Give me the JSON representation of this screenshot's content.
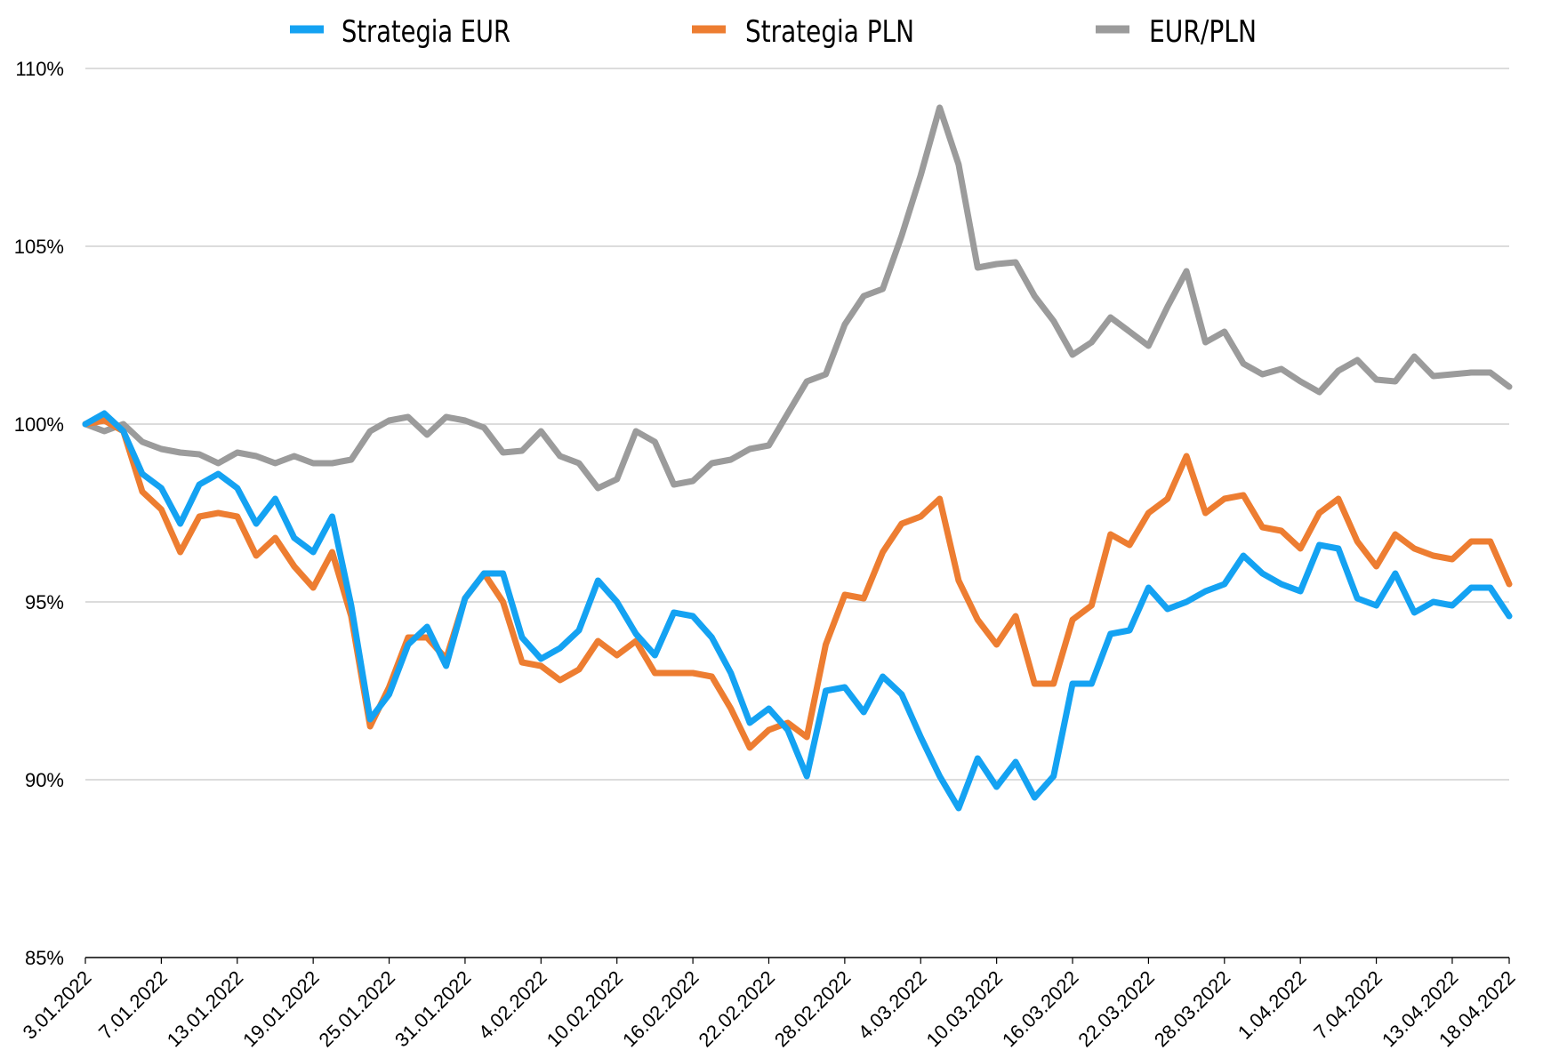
{
  "chart_data": {
    "type": "line",
    "title": "",
    "xlabel": "",
    "ylabel": "",
    "ylim": [
      85,
      110
    ],
    "y_ticks": [
      "85%",
      "90%",
      "95%",
      "100%",
      "105%",
      "110%"
    ],
    "y_tick_values": [
      85,
      90,
      95,
      100,
      105,
      110
    ],
    "grid": true,
    "legend_position": "top",
    "x_tick_labels": [
      "3.01.2022",
      "7.01.2022",
      "13.01.2022",
      "19.01.2022",
      "25.01.2022",
      "31.01.2022",
      "4.02.2022",
      "10.02.2022",
      "16.02.2022",
      "22.02.2022",
      "28.02.2022",
      "4.03.2022",
      "10.03.2022",
      "16.03.2022",
      "22.03.2022",
      "28.03.2022",
      "1.04.2022",
      "7.04.2022",
      "13.04.2022",
      "18.04.2022"
    ],
    "x_tick_index": [
      0,
      4,
      8,
      12,
      16,
      20,
      24,
      28,
      32,
      36,
      40,
      44,
      48,
      52,
      56,
      60,
      64,
      68,
      72,
      75
    ],
    "series": [
      {
        "name": "Strategia EUR",
        "color": "#14A2F2",
        "values": [
          100.0,
          100.3,
          99.8,
          98.6,
          98.2,
          97.2,
          98.3,
          98.6,
          98.2,
          97.2,
          97.9,
          96.8,
          96.4,
          97.4,
          94.9,
          91.7,
          92.4,
          93.8,
          94.3,
          93.2,
          95.1,
          95.8,
          95.8,
          94.0,
          93.4,
          93.7,
          94.2,
          95.6,
          95.0,
          94.1,
          93.5,
          94.7,
          94.6,
          94.0,
          93.0,
          91.6,
          92.0,
          91.4,
          90.1,
          92.5,
          92.6,
          91.9,
          92.9,
          92.4,
          91.2,
          90.1,
          89.2,
          90.6,
          89.8,
          90.5,
          89.5,
          90.1,
          92.7,
          92.7,
          94.1,
          94.2,
          95.4,
          94.8,
          95.0,
          95.3,
          95.5,
          96.3,
          95.8,
          95.5,
          95.3,
          96.6,
          96.5,
          95.1,
          94.9,
          95.8,
          94.7,
          95.0,
          94.9,
          95.4,
          95.4,
          94.6
        ]
      },
      {
        "name": "Strategia PLN",
        "color": "#ED7D31",
        "values": [
          100.0,
          100.1,
          99.8,
          98.1,
          97.6,
          96.4,
          97.4,
          97.5,
          97.4,
          96.3,
          96.8,
          96.0,
          95.4,
          96.4,
          94.6,
          91.5,
          92.6,
          94.0,
          94.0,
          93.4,
          95.1,
          95.8,
          95.0,
          93.3,
          93.2,
          92.8,
          93.1,
          93.9,
          93.5,
          93.9,
          93.0,
          93.0,
          93.0,
          92.9,
          92.0,
          90.9,
          91.4,
          91.6,
          91.2,
          93.8,
          95.2,
          95.1,
          96.4,
          97.2,
          97.4,
          97.9,
          95.6,
          94.5,
          93.8,
          94.6,
          92.7,
          92.7,
          94.5,
          94.9,
          96.9,
          96.6,
          97.5,
          97.9,
          99.1,
          97.5,
          97.9,
          98.0,
          97.1,
          97.0,
          96.5,
          97.5,
          97.9,
          96.7,
          96.0,
          96.9,
          96.5,
          96.3,
          96.2,
          96.7,
          96.7,
          95.5
        ]
      },
      {
        "name": "EUR/PLN",
        "color": "#9B9B9B",
        "values": [
          100.0,
          99.8,
          100.0,
          99.5,
          99.3,
          99.2,
          99.15,
          98.9,
          99.2,
          99.1,
          98.9,
          99.1,
          98.9,
          98.9,
          99.0,
          99.8,
          100.1,
          100.2,
          99.7,
          100.2,
          100.1,
          99.9,
          99.2,
          99.25,
          99.8,
          99.1,
          98.9,
          98.2,
          98.45,
          99.8,
          99.5,
          98.3,
          98.4,
          98.9,
          99.0,
          99.3,
          99.4,
          100.3,
          101.2,
          101.4,
          102.8,
          103.6,
          103.8,
          105.3,
          107.0,
          108.9,
          107.3,
          104.4,
          104.5,
          104.55,
          103.6,
          102.9,
          101.95,
          102.3,
          103.0,
          102.6,
          102.2,
          103.3,
          104.3,
          102.3,
          102.6,
          101.7,
          101.4,
          101.55,
          101.2,
          100.9,
          101.5,
          101.8,
          101.25,
          101.2,
          101.9,
          101.35,
          101.4,
          101.45,
          101.45,
          101.05
        ]
      }
    ]
  }
}
